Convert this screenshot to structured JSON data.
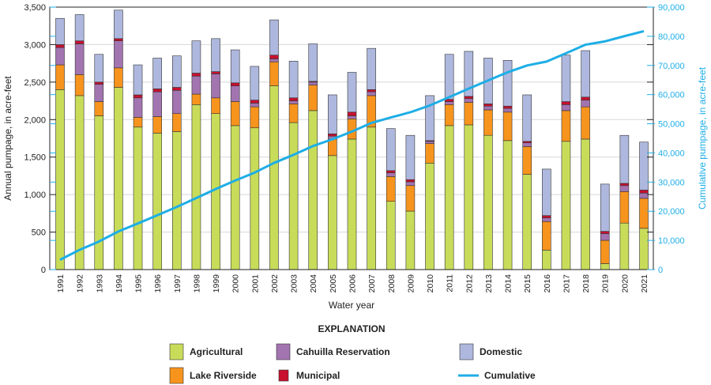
{
  "chart_data": {
    "type": "bar",
    "stacked": true,
    "xlabel": "Water year",
    "ylabel": "Annual pumpage, in acre-feet",
    "y2label": "Cumulative pumpage, in acre-feet",
    "ylim": [
      0,
      3500
    ],
    "y2lim": [
      0,
      90000
    ],
    "yticks": [
      "0",
      "500",
      "1,000",
      "1,500",
      "2,000",
      "2,500",
      "3,000",
      "3,500"
    ],
    "y2ticks": [
      "0",
      "10,000",
      "20,000",
      "30,000",
      "40,000",
      "50,000",
      "60,000",
      "70,000",
      "80,000",
      "90,000"
    ],
    "grid": true,
    "categories": [
      "1991",
      "1992",
      "1993",
      "1994",
      "1995",
      "1996",
      "1997",
      "1998",
      "1999",
      "2000",
      "2001",
      "2002",
      "2003",
      "2004",
      "2005",
      "2006",
      "2007",
      "2008",
      "2009",
      "2010",
      "2011",
      "2012",
      "2013",
      "2014",
      "2015",
      "2016",
      "2017",
      "2018",
      "2019",
      "2020",
      "2021"
    ],
    "series": [
      {
        "name": "Agricultural",
        "color": "#c8dc5a",
        "values": [
          2400,
          2320,
          2050,
          2430,
          1900,
          1820,
          1840,
          2200,
          2080,
          1920,
          1890,
          2450,
          1960,
          2120,
          1520,
          1740,
          1900,
          910,
          780,
          1420,
          1920,
          1930,
          1790,
          1720,
          1270,
          260,
          1710,
          1740,
          80,
          620,
          550
        ]
      },
      {
        "name": "Lake Riverside",
        "color": "#f7941d",
        "values": [
          330,
          280,
          190,
          260,
          130,
          220,
          240,
          140,
          210,
          320,
          280,
          320,
          250,
          340,
          220,
          270,
          420,
          330,
          340,
          260,
          280,
          300,
          340,
          380,
          370,
          380,
          410,
          430,
          310,
          420,
          400
        ]
      },
      {
        "name": "Cahuilla Reservation",
        "color": "#a274b0",
        "values": [
          230,
          410,
          230,
          360,
          260,
          330,
          310,
          240,
          320,
          210,
          50,
          40,
          40,
          40,
          40,
          40,
          50,
          50,
          50,
          30,
          40,
          50,
          50,
          50,
          50,
          50,
          80,
          90,
          90,
          80,
          70
        ]
      },
      {
        "name": "Municipal",
        "color": "#c8102e",
        "values": [
          40,
          40,
          30,
          30,
          40,
          40,
          40,
          40,
          30,
          40,
          40,
          50,
          40,
          10,
          30,
          50,
          30,
          30,
          30,
          10,
          30,
          30,
          30,
          30,
          20,
          30,
          40,
          40,
          30,
          30,
          40
        ]
      },
      {
        "name": "Domestic",
        "color": "#aeb8de",
        "values": [
          350,
          350,
          370,
          380,
          400,
          410,
          420,
          430,
          440,
          440,
          450,
          470,
          490,
          500,
          520,
          530,
          550,
          560,
          590,
          600,
          600,
          600,
          610,
          610,
          620,
          620,
          620,
          620,
          630,
          640,
          640
        ]
      }
    ],
    "line": {
      "name": "Cumulative",
      "color": "#1eaee6",
      "axis": "right",
      "values": [
        3350,
        6750,
        9620,
        13080,
        15810,
        18630,
        21480,
        24530,
        27610,
        30540,
        33250,
        36580,
        39360,
        42370,
        44700,
        47330,
        50280,
        52160,
        53950,
        56270,
        59140,
        62050,
        64870,
        67660,
        69990,
        71330,
        74190,
        77110,
        78250,
        80040,
        81740
      ]
    },
    "legend": {
      "title": "EXPLANATION",
      "placement": "bottom"
    }
  }
}
